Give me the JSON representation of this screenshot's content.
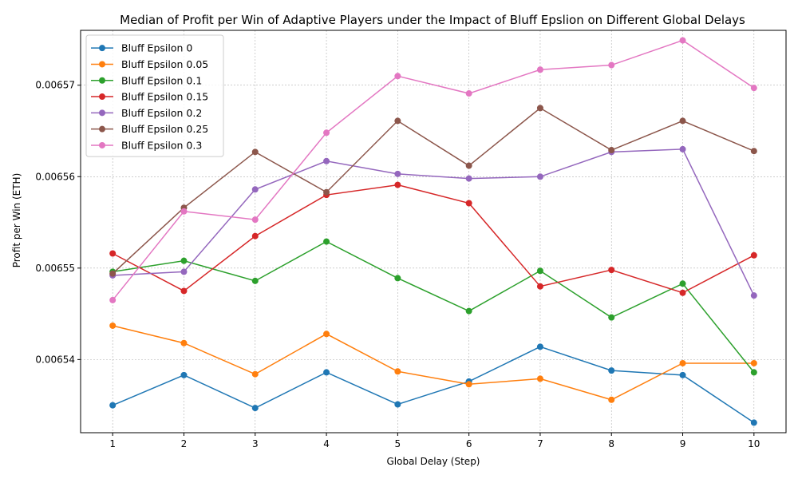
{
  "chart_data": {
    "type": "line",
    "title": "Median of Profit per Win of Adaptive Players under the Impact of Bluff Epslion on Different Global Delays",
    "xlabel": "Global Delay (Step)",
    "ylabel": "Profit per Win (ETH)",
    "x": [
      1,
      2,
      3,
      4,
      5,
      6,
      7,
      8,
      9,
      10
    ],
    "x_tick_labels": [
      "1",
      "2",
      "3",
      "4",
      "5",
      "6",
      "7",
      "8",
      "9",
      "10"
    ],
    "y_ticks": [
      0.00654,
      0.00655,
      0.00656,
      0.00657
    ],
    "y_tick_labels": [
      "0.00654",
      "0.00655",
      "0.00656",
      "0.00657"
    ],
    "xlim": [
      0.55,
      10.45
    ],
    "ylim": [
      0.006532,
      0.006576
    ],
    "grid": true,
    "legend_position": "top-left",
    "series": [
      {
        "name": "Bluff Epsilon 0",
        "color": "#1f77b4",
        "values": [
          0.006535,
          0.0065383,
          0.0065347,
          0.0065386,
          0.0065351,
          0.0065376,
          0.0065414,
          0.0065388,
          0.0065383,
          0.0065331
        ]
      },
      {
        "name": "Bluff Epsilon 0.05",
        "color": "#ff7f0e",
        "values": [
          0.0065437,
          0.0065418,
          0.0065384,
          0.0065428,
          0.0065387,
          0.0065373,
          0.0065379,
          0.0065356,
          0.0065396,
          0.0065396
        ]
      },
      {
        "name": "Bluff Epsilon 0.1",
        "color": "#2ca02c",
        "values": [
          0.0065496,
          0.0065508,
          0.0065486,
          0.0065529,
          0.0065489,
          0.0065453,
          0.0065497,
          0.0065446,
          0.0065483,
          0.0065386
        ]
      },
      {
        "name": "Bluff Epsilon 0.15",
        "color": "#d62728",
        "values": [
          0.0065516,
          0.0065475,
          0.0065535,
          0.006558,
          0.0065591,
          0.0065571,
          0.006548,
          0.0065498,
          0.0065473,
          0.0065514
        ]
      },
      {
        "name": "Bluff Epsilon 0.2",
        "color": "#9467bd",
        "values": [
          0.0065492,
          0.0065496,
          0.0065586,
          0.0065617,
          0.0065603,
          0.0065598,
          0.00656,
          0.0065627,
          0.006563,
          0.006547
        ]
      },
      {
        "name": "Bluff Epsilon 0.25",
        "color": "#8c564b",
        "values": [
          0.0065494,
          0.0065566,
          0.0065627,
          0.0065583,
          0.0065661,
          0.0065612,
          0.0065675,
          0.0065629,
          0.0065661,
          0.0065628
        ]
      },
      {
        "name": "Bluff Epsilon 0.3",
        "color": "#e377c2",
        "values": [
          0.0065465,
          0.0065562,
          0.0065553,
          0.0065648,
          0.006571,
          0.0065691,
          0.0065717,
          0.0065722,
          0.0065749,
          0.0065697
        ]
      }
    ]
  }
}
